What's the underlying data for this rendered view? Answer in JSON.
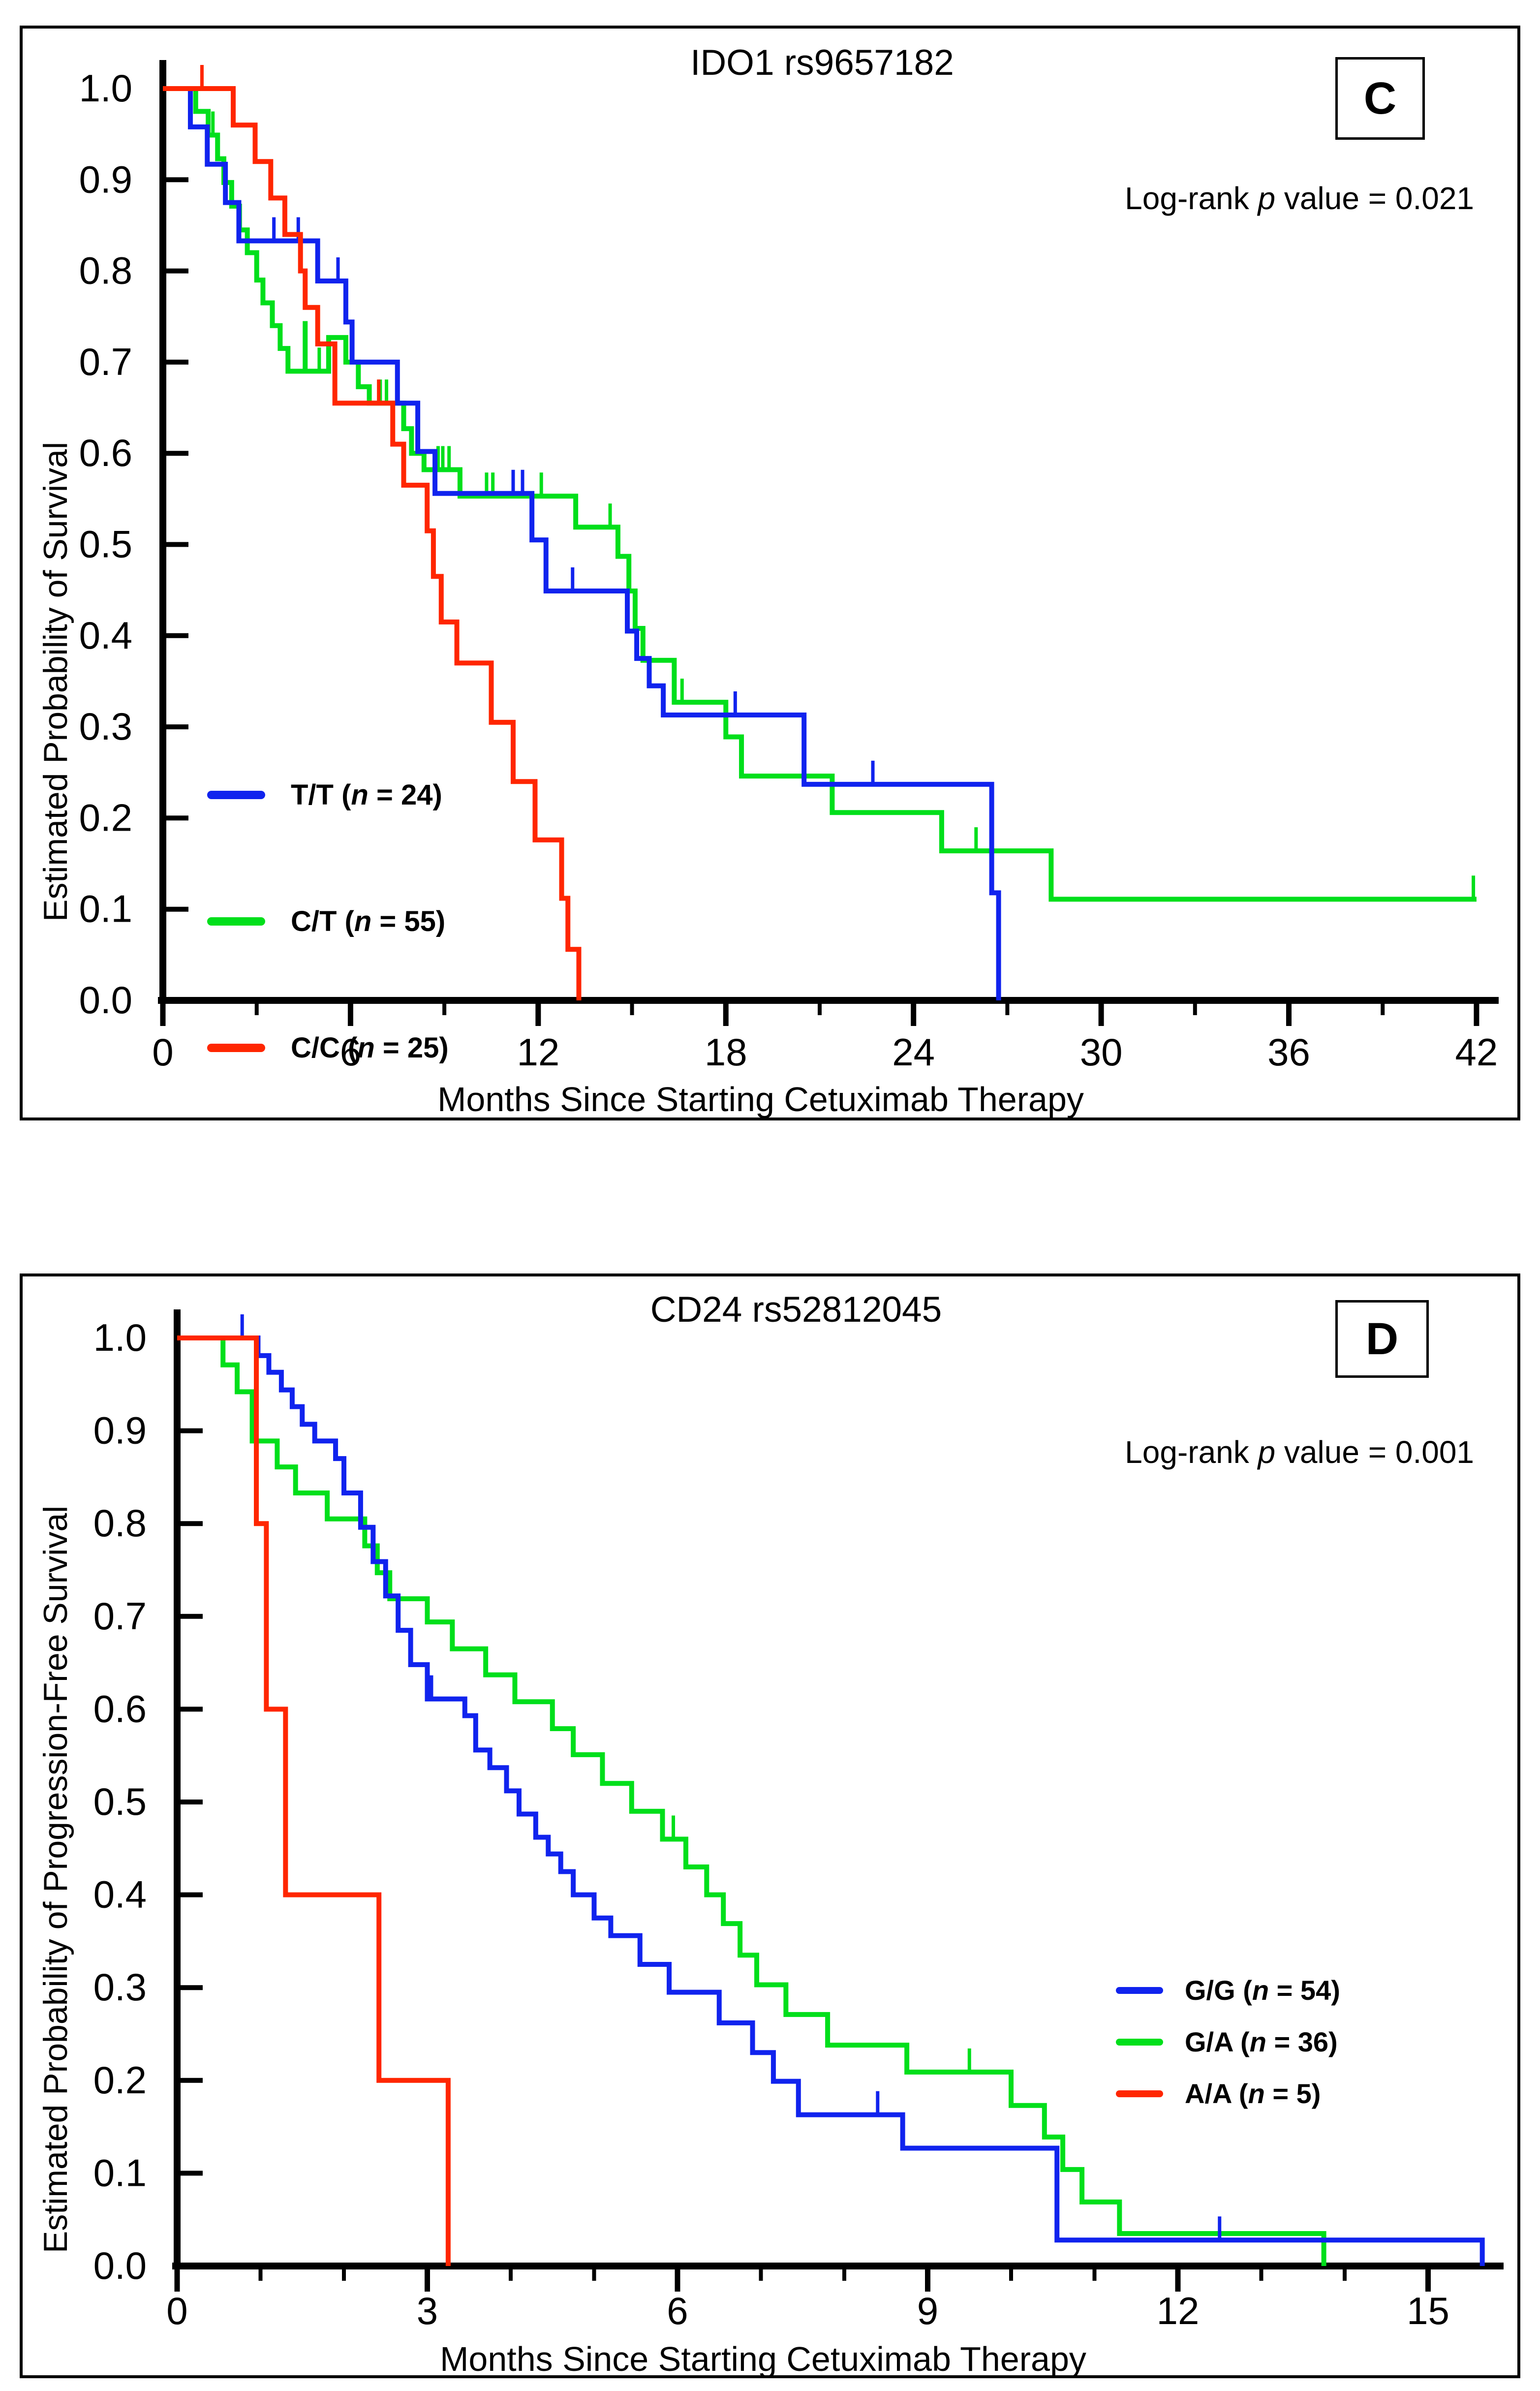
{
  "panels": [
    {
      "title": "IDO1 rs9657182",
      "panel_label": "C",
      "p_prefix": "Log-rank ",
      "p_italic": "p",
      "p_suffix": " value = 0.021",
      "xlabel": "Months  Since  Starting  Cetuximab Therapy",
      "ylabel": "Estimated  Probability  of  Survival"
    },
    {
      "title": "CD24 rs52812045",
      "panel_label": "D",
      "p_prefix": "Log-rank ",
      "p_italic": "p",
      "p_suffix": " value = 0.001",
      "xlabel": "Months  Since Starting Cetuximab Therapy",
      "ylabel": "Estimated  Probability  of Progression-Free Survival"
    }
  ],
  "chart_data": [
    {
      "type": "line",
      "subtype": "kaplan-meier-step",
      "title": "IDO1 rs9657182",
      "xlabel": "Months Since Starting Cetuximab Therapy",
      "ylabel": "Estimated Probability of Survival",
      "xlim": [
        0,
        42.6
      ],
      "ylim": [
        0.0,
        1.0
      ],
      "xticks": [
        0,
        6,
        12,
        18,
        24,
        30,
        36,
        42
      ],
      "x_minor_tick_step": 3,
      "yticks": [
        0.0,
        0.1,
        0.2,
        0.3,
        0.4,
        0.5,
        0.6,
        0.7,
        0.8,
        0.9,
        1.0
      ],
      "grid": false,
      "legend_position": "left-middle",
      "annotation": "Log-rank p value = 0.021",
      "series": [
        {
          "name": "C/T",
          "legend_pre": "C/T (",
          "legend_n": "n",
          "legend_post": " = 55)",
          "n": 55,
          "color": "#00DF1B",
          "steps": [
            [
              0,
              1.0
            ],
            [
              1.05,
              0.975
            ],
            [
              1.45,
              0.949
            ],
            [
              1.75,
              0.923
            ],
            [
              1.95,
              0.897
            ],
            [
              2.2,
              0.871
            ],
            [
              2.45,
              0.845
            ],
            [
              2.7,
              0.82
            ],
            [
              3.0,
              0.79
            ],
            [
              3.2,
              0.765
            ],
            [
              3.5,
              0.74
            ],
            [
              3.75,
              0.715
            ],
            [
              4.0,
              0.69
            ],
            [
              4.55,
              0.745
            ],
            [
              4.55,
              0.69
            ],
            [
              5.3,
              0.727
            ],
            [
              5.85,
              0.7
            ],
            [
              6.25,
              0.673
            ],
            [
              6.6,
              0.655
            ],
            [
              7.7,
              0.627
            ],
            [
              7.95,
              0.6
            ],
            [
              8.35,
              0.582
            ],
            [
              9.5,
              0.553
            ],
            [
              13.2,
              0.519
            ],
            [
              14.55,
              0.487
            ],
            [
              14.9,
              0.449
            ],
            [
              15.1,
              0.408
            ],
            [
              15.35,
              0.373
            ],
            [
              16.35,
              0.327
            ],
            [
              18.0,
              0.289
            ],
            [
              18.5,
              0.246
            ],
            [
              21.4,
              0.206
            ],
            [
              24.9,
              0.164
            ],
            [
              28.4,
              0.111
            ],
            [
              42.0,
              0.111
            ]
          ],
          "censor_times": [
            1.6,
            5.0,
            6.95,
            7.15,
            8.8,
            8.95,
            9.15,
            10.35,
            10.55,
            12.1,
            14.3,
            16.6,
            26.0,
            41.9
          ]
        },
        {
          "name": "T/T",
          "legend_pre": "T/T (",
          "legend_n": "n",
          "legend_post": " = 24)",
          "n": 24,
          "color": "#1023EE",
          "steps": [
            [
              0,
              1.0
            ],
            [
              0.88,
              0.958
            ],
            [
              1.42,
              0.917
            ],
            [
              2.0,
              0.875
            ],
            [
              2.43,
              0.833
            ],
            [
              4.95,
              0.789
            ],
            [
              5.85,
              0.744
            ],
            [
              6.05,
              0.7
            ],
            [
              7.5,
              0.655
            ],
            [
              8.15,
              0.602
            ],
            [
              8.7,
              0.556
            ],
            [
              11.8,
              0.505
            ],
            [
              12.25,
              0.449
            ],
            [
              14.85,
              0.405
            ],
            [
              15.15,
              0.375
            ],
            [
              15.55,
              0.345
            ],
            [
              16.0,
              0.313
            ],
            [
              20.5,
              0.237
            ],
            [
              26.5,
              0.118
            ],
            [
              26.72,
              0.0
            ]
          ],
          "censor_times": [
            3.55,
            4.33,
            5.6,
            11.2,
            11.5,
            13.1,
            18.3,
            22.7
          ]
        },
        {
          "name": "C/C",
          "legend_pre": "C/C (",
          "legend_n": "n",
          "legend_post": " = 25)",
          "n": 25,
          "color": "#FF2600",
          "steps": [
            [
              0,
              1.0
            ],
            [
              2.25,
              0.96
            ],
            [
              2.95,
              0.92
            ],
            [
              3.45,
              0.88
            ],
            [
              3.9,
              0.84
            ],
            [
              4.4,
              0.8
            ],
            [
              4.55,
              0.76
            ],
            [
              4.95,
              0.72
            ],
            [
              5.5,
              0.655
            ],
            [
              7.35,
              0.61
            ],
            [
              7.7,
              0.565
            ],
            [
              8.45,
              0.515
            ],
            [
              8.65,
              0.465
            ],
            [
              8.9,
              0.415
            ],
            [
              9.4,
              0.37
            ],
            [
              10.5,
              0.305
            ],
            [
              11.2,
              0.24
            ],
            [
              11.9,
              0.176
            ],
            [
              12.75,
              0.112
            ],
            [
              12.95,
              0.056
            ],
            [
              13.3,
              0.0
            ]
          ],
          "censor_times": [
            1.25,
            3.45,
            6.9
          ]
        }
      ],
      "legend_order": [
        "T/T",
        "C/T",
        "C/C"
      ]
    },
    {
      "type": "line",
      "subtype": "kaplan-meier-step",
      "title": "CD24 rs52812045",
      "xlabel": "Months Since Starting Cetuximab Therapy",
      "ylabel": "Estimated Probability of Progression-Free Survival",
      "xlim": [
        0,
        15.9
      ],
      "ylim": [
        0.0,
        1.0
      ],
      "xticks": [
        0,
        3,
        6,
        9,
        12,
        15
      ],
      "x_minor_tick_step": 1,
      "yticks": [
        0.0,
        0.1,
        0.2,
        0.3,
        0.4,
        0.5,
        0.6,
        0.7,
        0.8,
        0.9,
        1.0
      ],
      "grid": false,
      "legend_position": "right-lower",
      "annotation": "Log-rank p value = 0.001",
      "series": [
        {
          "name": "G/A",
          "legend_pre": "G/A (",
          "legend_n": "n",
          "legend_post": " = 36)",
          "n": 36,
          "color": "#00DF1B",
          "steps": [
            [
              0,
              1.0
            ],
            [
              0.55,
              0.971
            ],
            [
              0.72,
              0.942
            ],
            [
              0.9,
              0.889
            ],
            [
              1.2,
              0.861
            ],
            [
              1.42,
              0.833
            ],
            [
              1.8,
              0.805
            ],
            [
              2.25,
              0.776
            ],
            [
              2.4,
              0.747
            ],
            [
              2.55,
              0.719
            ],
            [
              3.0,
              0.694
            ],
            [
              3.3,
              0.665
            ],
            [
              3.7,
              0.637
            ],
            [
              4.05,
              0.608
            ],
            [
              4.5,
              0.579
            ],
            [
              4.75,
              0.551
            ],
            [
              5.1,
              0.52
            ],
            [
              5.45,
              0.49
            ],
            [
              5.82,
              0.46
            ],
            [
              6.1,
              0.43
            ],
            [
              6.35,
              0.4
            ],
            [
              6.55,
              0.369
            ],
            [
              6.75,
              0.335
            ],
            [
              6.95,
              0.303
            ],
            [
              7.3,
              0.271
            ],
            [
              7.8,
              0.238
            ],
            [
              8.75,
              0.209
            ],
            [
              10.0,
              0.173
            ],
            [
              10.4,
              0.139
            ],
            [
              10.62,
              0.104
            ],
            [
              10.85,
              0.069
            ],
            [
              11.3,
              0.035
            ],
            [
              13.75,
              0.0
            ]
          ],
          "censor_times": [
            5.95,
            9.5
          ]
        },
        {
          "name": "G/G",
          "legend_pre": "G/G (",
          "legend_n": "n",
          "legend_post": " = 54)",
          "n": 54,
          "color": "#1023EE",
          "steps": [
            [
              0,
              1.0
            ],
            [
              0.97,
              0.981
            ],
            [
              1.1,
              0.963
            ],
            [
              1.25,
              0.944
            ],
            [
              1.38,
              0.926
            ],
            [
              1.5,
              0.907
            ],
            [
              1.65,
              0.889
            ],
            [
              1.9,
              0.87
            ],
            [
              2.0,
              0.833
            ],
            [
              2.2,
              0.796
            ],
            [
              2.35,
              0.759
            ],
            [
              2.5,
              0.722
            ],
            [
              2.65,
              0.685
            ],
            [
              2.8,
              0.648
            ],
            [
              3.0,
              0.611
            ],
            [
              3.45,
              0.593
            ],
            [
              3.58,
              0.556
            ],
            [
              3.75,
              0.537
            ],
            [
              3.95,
              0.512
            ],
            [
              4.1,
              0.487
            ],
            [
              4.3,
              0.462
            ],
            [
              4.45,
              0.444
            ],
            [
              4.6,
              0.425
            ],
            [
              4.75,
              0.4
            ],
            [
              5.0,
              0.375
            ],
            [
              5.2,
              0.356
            ],
            [
              5.55,
              0.325
            ],
            [
              5.9,
              0.295
            ],
            [
              6.5,
              0.262
            ],
            [
              6.9,
              0.23
            ],
            [
              7.15,
              0.199
            ],
            [
              7.45,
              0.163
            ],
            [
              8.7,
              0.127
            ],
            [
              10.55,
              0.028
            ],
            [
              15.65,
              0.0
            ]
          ],
          "censor_times": [
            0.78,
            3.05,
            8.4,
            12.5
          ]
        },
        {
          "name": "A/A",
          "legend_pre": "A/A (",
          "legend_n": "n",
          "legend_post": " = 5)",
          "n": 5,
          "color": "#FF2600",
          "steps": [
            [
              0,
              1.0
            ],
            [
              0.95,
              0.8
            ],
            [
              1.07,
              0.6
            ],
            [
              1.3,
              0.4
            ],
            [
              2.42,
              0.2
            ],
            [
              3.25,
              0.0
            ]
          ],
          "censor_times": []
        }
      ],
      "legend_order": [
        "G/G",
        "G/A",
        "A/A"
      ]
    }
  ]
}
